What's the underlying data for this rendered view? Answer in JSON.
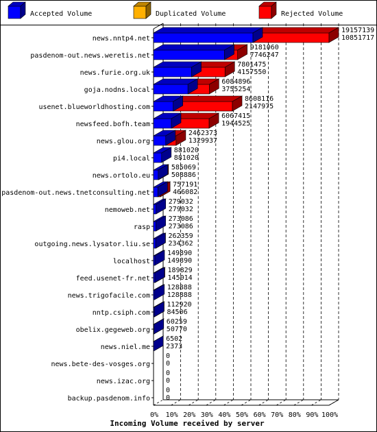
{
  "colors": {
    "accepted": "#0000ff",
    "duplicated": "#ffb000",
    "rejected": "#ff0000",
    "frame": "#000000",
    "background": "#ffffff"
  },
  "chart_data": {
    "type": "bar",
    "orientation": "horizontal",
    "stacked": true,
    "title": "Incoming Volume received by server",
    "xlabel": "Incoming Volume received by server",
    "ylabel": "",
    "xlim": [
      0,
      100
    ],
    "x_unit": "%",
    "grid": true,
    "legend_placement": "top",
    "ticks": [
      "0%",
      "10%",
      "20%",
      "30%",
      "40%",
      "50%",
      "60%",
      "70%",
      "80%",
      "90%",
      "100%"
    ],
    "legend": [
      {
        "name": "Accepted Volume",
        "color_key": "accepted"
      },
      {
        "name": "Duplicated Volume",
        "color_key": "duplicated"
      },
      {
        "name": "Rejected Volume",
        "color_key": "rejected"
      }
    ],
    "servers": [
      {
        "name": "news.nntp4.net",
        "total": 19157139,
        "accepted": 10851717
      },
      {
        "name": "pasdenom-out.news.weretis.net",
        "total": 9181060,
        "accepted": 7746247
      },
      {
        "name": "news.furie.org.uk",
        "total": 7801475,
        "accepted": 4157550
      },
      {
        "name": "goja.nodns.local",
        "total": 6084896,
        "accepted": 3755254
      },
      {
        "name": "usenet.blueworldhosting.com",
        "total": 8608116,
        "accepted": 2147975
      },
      {
        "name": "newsfeed.bofh.team",
        "total": 6067415,
        "accepted": 1944525
      },
      {
        "name": "news.glou.org",
        "total": 2462373,
        "accepted": 1329937
      },
      {
        "name": "pi4.local",
        "total": 881020,
        "accepted": 881020
      },
      {
        "name": "news.ortolo.eu",
        "total": 585069,
        "accepted": 508886
      },
      {
        "name": "pasdenom-out.news.tnetconsulting.net",
        "total": 757191,
        "accepted": 466082
      },
      {
        "name": "nemoweb.net",
        "total": 279032,
        "accepted": 279032
      },
      {
        "name": "rasp",
        "total": 273086,
        "accepted": 273086
      },
      {
        "name": "outgoing.news.lysator.liu.se",
        "total": 262359,
        "accepted": 234362
      },
      {
        "name": "localhost",
        "total": 149890,
        "accepted": 149890
      },
      {
        "name": "feed.usenet-fr.net",
        "total": 189829,
        "accepted": 145014
      },
      {
        "name": "news.trigofacile.com",
        "total": 128888,
        "accepted": 128888
      },
      {
        "name": "nntp.csiph.com",
        "total": 112920,
        "accepted": 84506
      },
      {
        "name": "obelix.gegeweb.org",
        "total": 60259,
        "accepted": 50770
      },
      {
        "name": "news.niel.me",
        "total": 6502,
        "accepted": 2373
      },
      {
        "name": "news.bete-des-vosges.org",
        "total": 0,
        "accepted": 0
      },
      {
        "name": "news.izac.org",
        "total": 0,
        "accepted": 0
      },
      {
        "name": "backup.pasdenom.info",
        "total": 0,
        "accepted": 0
      }
    ]
  }
}
